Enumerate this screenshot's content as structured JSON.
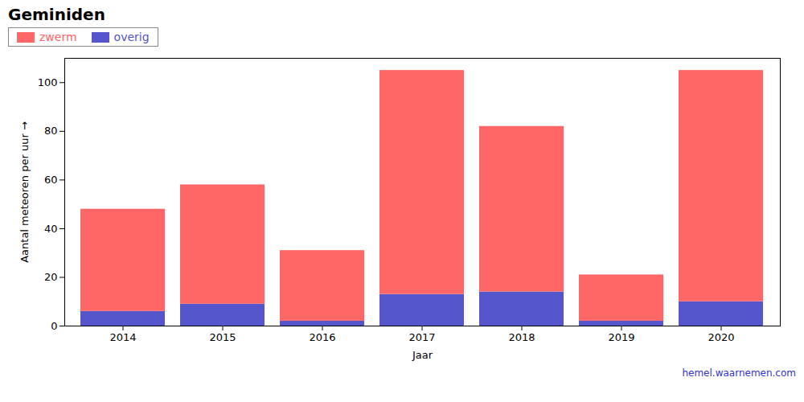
{
  "chart_data": {
    "type": "bar",
    "title": "Geminiden",
    "xlabel": "Jaar",
    "ylabel": "Aantal meteoren per uur",
    "categories": [
      "2014",
      "2015",
      "2016",
      "2017",
      "2018",
      "2019",
      "2020"
    ],
    "series": [
      {
        "name": "overig",
        "color": "#5555CC",
        "values": [
          6,
          9,
          2,
          13,
          14,
          2,
          10
        ]
      },
      {
        "name": "zwerm",
        "color": "#FF6666",
        "values": [
          42,
          49,
          29,
          92,
          68,
          19,
          95
        ]
      }
    ],
    "stacked": true,
    "ylim": [
      0,
      110
    ],
    "yticks": [
      0,
      20,
      40,
      60,
      80,
      100
    ],
    "grid": false,
    "legend": "upper left",
    "annotations": [
      {
        "text": "hemel.waarnemen.com",
        "color": "#3333CC"
      }
    ]
  }
}
